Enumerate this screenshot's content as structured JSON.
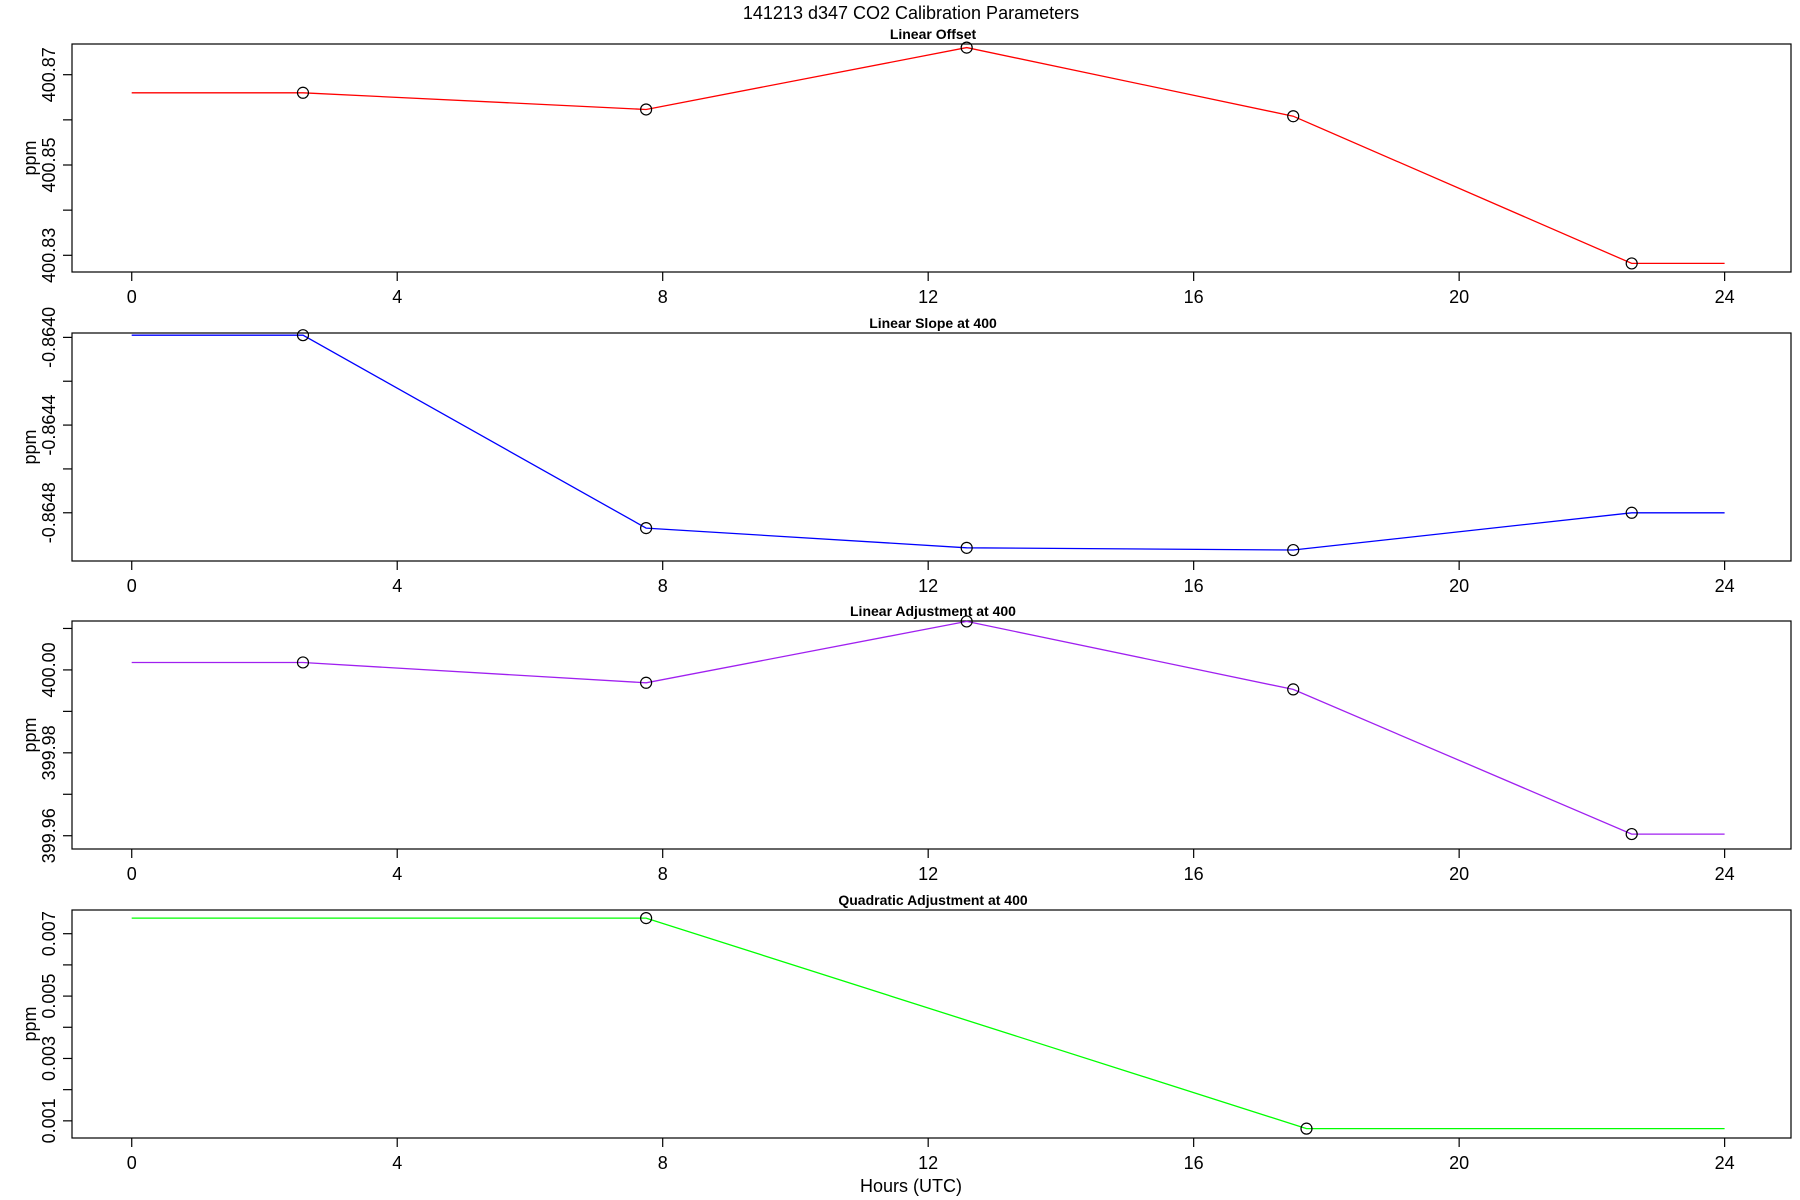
{
  "figure": {
    "title": "141213   d347   CO2 Calibration Parameters",
    "xlabel": "Hours (UTC)"
  },
  "chart_data": [
    {
      "type": "line",
      "title": "Linear Offset",
      "ylabel": "ppm",
      "xlim": [
        -0.9,
        25.0
      ],
      "ylim": [
        400.8263,
        400.8768
      ],
      "xticks": [
        0,
        4,
        8,
        12,
        16,
        20,
        24
      ],
      "yticks": [
        400.83,
        400.85,
        400.87
      ],
      "ytick_labels": [
        "400.83",
        "400.85",
        "400.87"
      ],
      "yminor": [
        400.84,
        400.86
      ],
      "color": "#ff0000",
      "x": [
        0,
        2.58,
        7.75,
        12.58,
        17.5,
        22.6,
        24
      ],
      "y": [
        400.866,
        400.866,
        400.8623,
        400.876,
        400.8608,
        400.8282,
        400.8282
      ],
      "markers": [
        false,
        true,
        true,
        true,
        true,
        true,
        false
      ]
    },
    {
      "type": "line",
      "title": "Linear Slope at 400",
      "ylabel": "ppm",
      "xlim": [
        -0.9,
        25.0
      ],
      "ylim": [
        -0.86502,
        -0.86398
      ],
      "xticks": [
        0,
        4,
        8,
        12,
        16,
        20,
        24
      ],
      "yticks": [
        -0.864,
        -0.8644,
        -0.8648
      ],
      "ytick_labels": [
        "-0.8640",
        "-0.8644",
        "-0.8648"
      ],
      "yminor": [
        -0.8642,
        -0.8646
      ],
      "color": "#0000ff",
      "x": [
        0,
        2.58,
        7.75,
        12.58,
        17.5,
        22.6,
        24
      ],
      "y": [
        -0.86399,
        -0.86399,
        -0.86487,
        -0.86496,
        -0.86497,
        -0.8648,
        -0.8648
      ],
      "markers": [
        false,
        true,
        true,
        true,
        true,
        true,
        false
      ]
    },
    {
      "type": "line",
      "title": "Linear Adjustment at 400",
      "ylabel": "ppm",
      "xlim": [
        -0.9,
        25.0
      ],
      "ylim": [
        399.9568,
        400.0118
      ],
      "xticks": [
        0,
        4,
        8,
        12,
        16,
        20,
        24
      ],
      "yticks": [
        399.96,
        399.98,
        400.0
      ],
      "ytick_labels": [
        "399.96",
        "399.98",
        "400.00"
      ],
      "yminor": [
        399.97,
        399.99,
        400.01
      ],
      "color": "#a020f0",
      "x": [
        0,
        2.58,
        7.75,
        12.58,
        17.5,
        22.6,
        24
      ],
      "y": [
        400.0018,
        400.0018,
        399.9969,
        400.0117,
        399.9953,
        399.9604,
        399.9604
      ],
      "markers": [
        false,
        true,
        true,
        true,
        true,
        true,
        false
      ]
    },
    {
      "type": "line",
      "title": "Quadratic Adjustment at 400",
      "ylabel": "ppm",
      "xlim": [
        -0.9,
        25.0
      ],
      "ylim": [
        0.00045,
        0.00776
      ],
      "xticks": [
        0,
        4,
        8,
        12,
        16,
        20,
        24
      ],
      "yticks": [
        0.001,
        0.003,
        0.005,
        0.007
      ],
      "ytick_labels": [
        "0.001",
        "0.003",
        "0.005",
        "0.007"
      ],
      "yminor": [
        0.002,
        0.004,
        0.006
      ],
      "color": "#00ff00",
      "x": [
        0,
        7.75,
        17.7,
        24
      ],
      "y": [
        0.0075,
        0.0075,
        0.00075,
        0.00075
      ],
      "markers": [
        false,
        true,
        true,
        false
      ]
    }
  ]
}
